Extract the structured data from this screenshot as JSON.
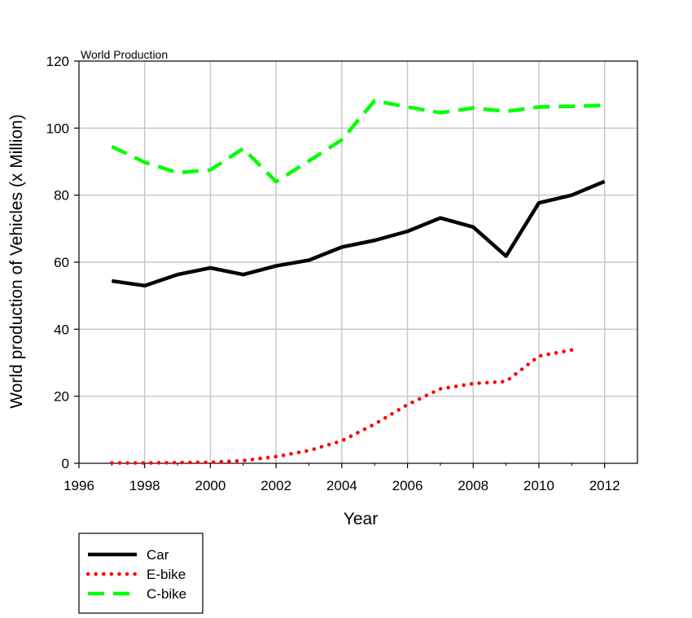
{
  "chart_data": {
    "type": "line",
    "title": "World Production",
    "xlabel": "Year",
    "ylabel": "World production of Vehicles (x Million)",
    "xlim": [
      1996,
      2013
    ],
    "ylim": [
      0,
      120
    ],
    "x_ticks": [
      1996,
      1998,
      2000,
      2002,
      2004,
      2006,
      2008,
      2010,
      2012
    ],
    "y_ticks": [
      0,
      20,
      40,
      60,
      80,
      100,
      120
    ],
    "grid": true,
    "legend_position": "bottom-left below plot",
    "series": [
      {
        "name": "Car",
        "color": "#000000",
        "style": "solid",
        "x": [
          1997,
          1998,
          1999,
          2000,
          2001,
          2002,
          2003,
          2004,
          2005,
          2006,
          2007,
          2008,
          2009,
          2010,
          2011,
          2012
        ],
        "values": [
          54.4,
          53.0,
          56.3,
          58.3,
          56.3,
          58.9,
          60.6,
          64.5,
          66.5,
          69.2,
          73.2,
          70.5,
          61.8,
          77.7,
          80.0,
          84.1
        ]
      },
      {
        "name": "E-bike",
        "color": "#ff0000",
        "style": "dotted",
        "x": [
          1997,
          1998,
          1999,
          2000,
          2001,
          2002,
          2003,
          2004,
          2005,
          2006,
          2007,
          2008,
          2009,
          2010,
          2011
        ],
        "values": [
          0.1,
          0.1,
          0.2,
          0.3,
          0.8,
          2.0,
          3.8,
          6.7,
          11.7,
          17.5,
          22.2,
          23.8,
          24.4,
          32.0,
          33.8
        ]
      },
      {
        "name": "C-bike",
        "color": "#00ff00",
        "style": "dashed",
        "x": [
          1997,
          1998,
          1999,
          2000,
          2001,
          2002,
          2003,
          2004,
          2005,
          2006,
          2007,
          2008,
          2009,
          2010,
          2011,
          2012
        ],
        "values": [
          94.5,
          89.8,
          86.7,
          87.5,
          93.9,
          84.0,
          90.2,
          96.5,
          108.2,
          106.3,
          104.6,
          106.0,
          105.0,
          106.3,
          106.5,
          106.8
        ]
      }
    ]
  }
}
